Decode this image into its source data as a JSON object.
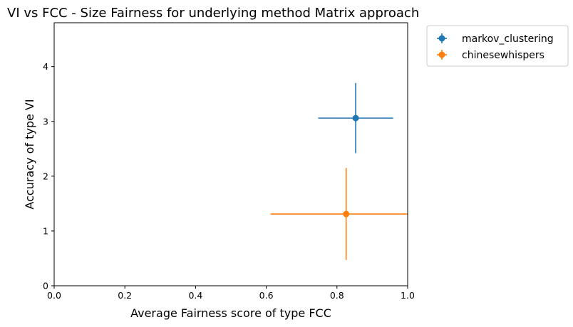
{
  "chart_data": {
    "type": "scatter",
    "title": "VI vs FCC - Size Fairness for underlying method Matrix approach",
    "xlabel": "Average Fairness score of type FCC",
    "ylabel": "Accuracy of type VI",
    "xlim": [
      0.0,
      1.0
    ],
    "ylim": [
      0,
      4.8
    ],
    "xticks": [
      "0.0",
      "0.2",
      "0.4",
      "0.6",
      "0.8",
      "1.0"
    ],
    "yticks": [
      "0",
      "1",
      "2",
      "3",
      "4"
    ],
    "grid": false,
    "legend_position": "outside-top-right",
    "series": [
      {
        "name": "markov_clustering",
        "color": "#1f77b4",
        "x": 0.853,
        "y": 3.06,
        "xerr": 0.106,
        "yerr": 0.64
      },
      {
        "name": "chinesewhispers",
        "color": "#ff7f0e",
        "x": 0.826,
        "y": 1.31,
        "xerr": 0.214,
        "yerr": 0.84
      }
    ]
  }
}
